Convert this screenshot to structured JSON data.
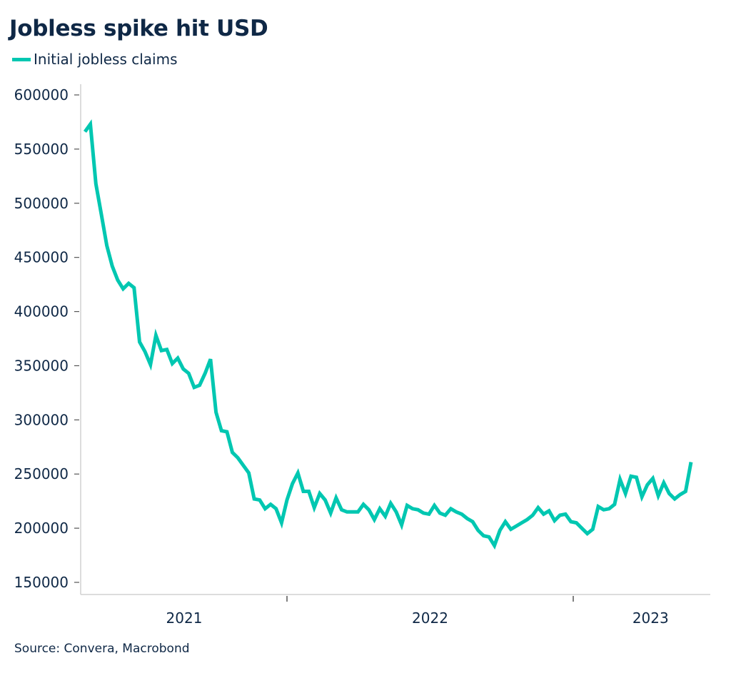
{
  "chart_data": {
    "type": "line",
    "title": "Jobless spike hit USD",
    "xlabel": "",
    "ylabel": "",
    "legend": {
      "placement": "top-left",
      "entries": [
        "Initial jobless claims"
      ]
    },
    "grid": false,
    "ylim": [
      140000,
      610000
    ],
    "yticks": [
      150000,
      200000,
      250000,
      300000,
      350000,
      400000,
      450000,
      500000,
      550000,
      600000
    ],
    "ytick_labels": [
      "150000",
      "200000",
      "250000",
      "300000",
      "350000",
      "400000",
      "450000",
      "500000",
      "550000",
      "600000"
    ],
    "xlim": [
      2021.0,
      2023.48
    ],
    "x_unit": "year",
    "x_year_boundaries": [
      2022,
      2023
    ],
    "xtick_labels": [
      {
        "label": "2021",
        "center": 2021.5
      },
      {
        "label": "2022",
        "center": 2022.5
      },
      {
        "label": "2023",
        "center": 2023.27
      }
    ],
    "x_start": 2021.294,
    "x_step_weeks_in_years": 0.0191,
    "series": [
      {
        "name": "Initial jobless claims",
        "color": "#00c7b1",
        "values": [
          566000,
          573000,
          518000,
          490000,
          461000,
          442000,
          429000,
          421000,
          426000,
          422000,
          372000,
          363000,
          351000,
          378000,
          364000,
          365000,
          352000,
          357000,
          347000,
          343000,
          330000,
          332000,
          343000,
          356000,
          307000,
          290000,
          289000,
          270000,
          265000,
          258000,
          251000,
          227000,
          226000,
          218000,
          222000,
          218000,
          205000,
          226000,
          241000,
          251000,
          234000,
          234000,
          219000,
          232000,
          226000,
          214000,
          228000,
          217000,
          215000,
          215000,
          215000,
          222000,
          217000,
          208000,
          218000,
          211000,
          223000,
          215000,
          203000,
          221000,
          218000,
          217000,
          214000,
          213000,
          221000,
          214000,
          212000,
          218000,
          215000,
          213000,
          209000,
          206000,
          198000,
          193000,
          192000,
          184000,
          198000,
          206000,
          199000,
          202000,
          205000,
          208000,
          212000,
          219000,
          213000,
          216000,
          207000,
          212000,
          213000,
          206000,
          205000,
          200000,
          195000,
          199000,
          220000,
          217000,
          218000,
          222000,
          245000,
          232000,
          248000,
          247000,
          229000,
          240000,
          246000,
          230000,
          242000,
          232000,
          227000,
          231000,
          234000,
          261000
        ]
      }
    ],
    "source": "Source: Convera, Macrobond"
  },
  "colors": {
    "line": "#00c7b1",
    "text": "#0f2846",
    "axis": "#d0d0d0",
    "tick": "#555555"
  }
}
